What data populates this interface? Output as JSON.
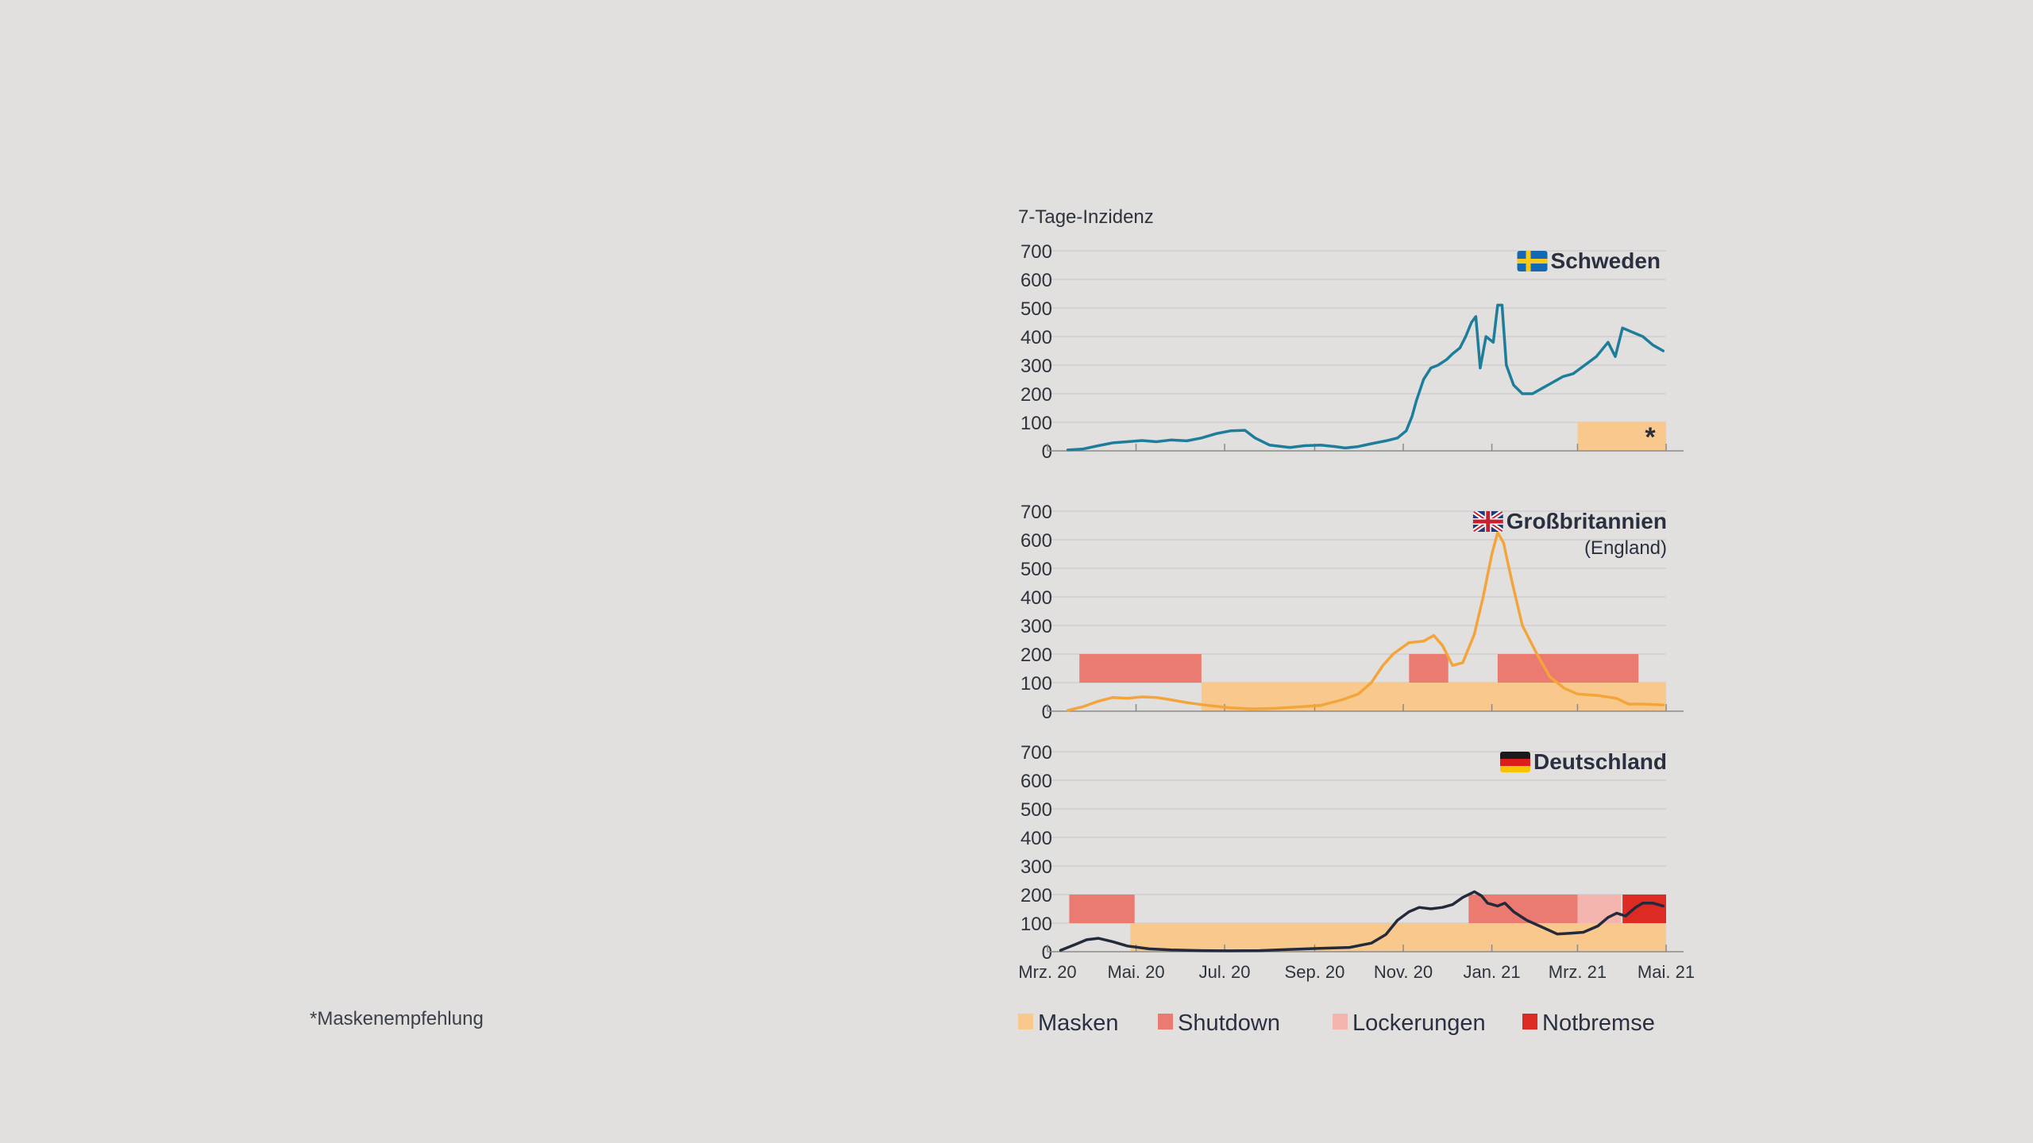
{
  "chart_data": {
    "type": "line",
    "title": "",
    "ylabel": "7-Tage-Inzidenz",
    "ylim": [
      0,
      700
    ],
    "yticks": [
      "700",
      "600",
      "500",
      "400",
      "300",
      "200",
      "100",
      "0"
    ],
    "xlim": [
      "2020-03-01",
      "2021-05-01"
    ],
    "xticks": [
      {
        "date": "2020-03-01",
        "label": "Mrz. 20"
      },
      {
        "date": "2020-05-01",
        "label": "Mai. 20"
      },
      {
        "date": "2020-07-01",
        "label": "Jul. 20"
      },
      {
        "date": "2020-09-01",
        "label": "Sep. 20"
      },
      {
        "date": "2020-11-01",
        "label": "Nov. 20"
      },
      {
        "date": "2021-01-01",
        "label": "Jan. 21"
      },
      {
        "date": "2021-03-01",
        "label": "Mrz. 21"
      },
      {
        "date": "2021-05-01",
        "label": "Mai. 21"
      }
    ],
    "grid": true,
    "legend_position": "bottom",
    "legend": [
      {
        "key": "masks",
        "label": "Masken",
        "color": "#f9c88c"
      },
      {
        "key": "shutdown",
        "label": "Shutdown",
        "color": "#eb7a70"
      },
      {
        "key": "loosening",
        "label": "Lockerungen",
        "color": "#f3b5ae"
      },
      {
        "key": "brake",
        "label": "Notbremse",
        "color": "#dd2a22"
      }
    ],
    "panels": [
      {
        "country": "Schweden",
        "subtitle": "",
        "flag": "sweden-flag-icon",
        "line_color": "#1e7d9b",
        "series": [
          [
            "2020-03-15",
            3
          ],
          [
            "2020-03-25",
            6
          ],
          [
            "2020-04-05",
            18
          ],
          [
            "2020-04-15",
            28
          ],
          [
            "2020-04-25",
            32
          ],
          [
            "2020-05-05",
            36
          ],
          [
            "2020-05-15",
            32
          ],
          [
            "2020-05-25",
            38
          ],
          [
            "2020-06-05",
            35
          ],
          [
            "2020-06-15",
            45
          ],
          [
            "2020-06-25",
            60
          ],
          [
            "2020-07-05",
            70
          ],
          [
            "2020-07-15",
            72
          ],
          [
            "2020-07-22",
            45
          ],
          [
            "2020-08-01",
            20
          ],
          [
            "2020-08-15",
            12
          ],
          [
            "2020-08-25",
            18
          ],
          [
            "2020-09-05",
            20
          ],
          [
            "2020-09-15",
            15
          ],
          [
            "2020-09-22",
            10
          ],
          [
            "2020-10-01",
            15
          ],
          [
            "2020-10-10",
            25
          ],
          [
            "2020-10-20",
            35
          ],
          [
            "2020-10-28",
            45
          ],
          [
            "2020-11-03",
            70
          ],
          [
            "2020-11-07",
            120
          ],
          [
            "2020-11-10",
            175
          ],
          [
            "2020-11-15",
            250
          ],
          [
            "2020-11-20",
            290
          ],
          [
            "2020-11-25",
            300
          ],
          [
            "2020-12-01",
            320
          ],
          [
            "2020-12-05",
            340
          ],
          [
            "2020-12-10",
            360
          ],
          [
            "2020-12-14",
            400
          ],
          [
            "2020-12-18",
            450
          ],
          [
            "2020-12-21",
            470
          ],
          [
            "2020-12-24",
            290
          ],
          [
            "2020-12-28",
            400
          ],
          [
            "2021-01-02",
            380
          ],
          [
            "2021-01-05",
            510
          ],
          [
            "2021-01-08",
            510
          ],
          [
            "2021-01-11",
            300
          ],
          [
            "2021-01-16",
            230
          ],
          [
            "2021-01-22",
            200
          ],
          [
            "2021-01-29",
            200
          ],
          [
            "2021-02-05",
            220
          ],
          [
            "2021-02-12",
            240
          ],
          [
            "2021-02-19",
            260
          ],
          [
            "2021-02-26",
            270
          ],
          [
            "2021-03-06",
            300
          ],
          [
            "2021-03-14",
            330
          ],
          [
            "2021-03-22",
            380
          ],
          [
            "2021-03-27",
            330
          ],
          [
            "2021-04-01",
            430
          ],
          [
            "2021-04-08",
            415
          ],
          [
            "2021-04-15",
            400
          ],
          [
            "2021-04-22",
            370
          ],
          [
            "2021-04-29",
            350
          ]
        ],
        "bands": [
          {
            "key": "masks",
            "level": "low",
            "start": "2021-03-01",
            "end": "2021-05-01",
            "label": "*"
          }
        ]
      },
      {
        "country": "Großbritannien",
        "subtitle": "(England)",
        "flag": "uk-flag-icon",
        "line_color": "#f3a53b",
        "series": [
          [
            "2020-03-15",
            3
          ],
          [
            "2020-03-25",
            15
          ],
          [
            "2020-04-05",
            35
          ],
          [
            "2020-04-15",
            48
          ],
          [
            "2020-04-25",
            45
          ],
          [
            "2020-05-05",
            50
          ],
          [
            "2020-05-15",
            48
          ],
          [
            "2020-05-25",
            40
          ],
          [
            "2020-06-05",
            30
          ],
          [
            "2020-06-20",
            20
          ],
          [
            "2020-07-05",
            12
          ],
          [
            "2020-07-20",
            8
          ],
          [
            "2020-08-05",
            10
          ],
          [
            "2020-08-20",
            15
          ],
          [
            "2020-09-05",
            20
          ],
          [
            "2020-09-20",
            40
          ],
          [
            "2020-10-01",
            60
          ],
          [
            "2020-10-10",
            100
          ],
          [
            "2020-10-18",
            160
          ],
          [
            "2020-10-25",
            200
          ],
          [
            "2020-11-05",
            240
          ],
          [
            "2020-11-15",
            245
          ],
          [
            "2020-11-22",
            265
          ],
          [
            "2020-11-28",
            230
          ],
          [
            "2020-12-05",
            160
          ],
          [
            "2020-12-12",
            170
          ],
          [
            "2020-12-20",
            270
          ],
          [
            "2020-12-26",
            400
          ],
          [
            "2021-01-01",
            550
          ],
          [
            "2021-01-05",
            625
          ],
          [
            "2021-01-09",
            590
          ],
          [
            "2021-01-15",
            450
          ],
          [
            "2021-01-22",
            300
          ],
          [
            "2021-02-01",
            200
          ],
          [
            "2021-02-10",
            120
          ],
          [
            "2021-02-20",
            80
          ],
          [
            "2021-03-01",
            60
          ],
          [
            "2021-03-15",
            55
          ],
          [
            "2021-03-28",
            45
          ],
          [
            "2021-04-05",
            25
          ],
          [
            "2021-04-15",
            25
          ],
          [
            "2021-04-29",
            22
          ]
        ],
        "bands": [
          {
            "key": "shutdown",
            "level": "high",
            "start": "2020-03-23",
            "end": "2020-06-15"
          },
          {
            "key": "masks",
            "level": "low",
            "start": "2020-06-15",
            "end": "2021-05-01"
          },
          {
            "key": "shutdown",
            "level": "high",
            "start": "2020-11-05",
            "end": "2020-12-02"
          },
          {
            "key": "shutdown",
            "level": "high",
            "start": "2021-01-05",
            "end": "2021-04-12"
          }
        ]
      },
      {
        "country": "Deutschland",
        "subtitle": "",
        "flag": "germany-flag-icon",
        "line_color": "#232a3b",
        "series": [
          [
            "2020-03-10",
            5
          ],
          [
            "2020-03-20",
            25
          ],
          [
            "2020-03-28",
            42
          ],
          [
            "2020-04-05",
            47
          ],
          [
            "2020-04-15",
            35
          ],
          [
            "2020-04-25",
            20
          ],
          [
            "2020-05-10",
            10
          ],
          [
            "2020-05-25",
            6
          ],
          [
            "2020-06-15",
            4
          ],
          [
            "2020-07-05",
            3
          ],
          [
            "2020-07-25",
            4
          ],
          [
            "2020-08-15",
            8
          ],
          [
            "2020-09-05",
            12
          ],
          [
            "2020-09-25",
            15
          ],
          [
            "2020-10-10",
            30
          ],
          [
            "2020-10-20",
            60
          ],
          [
            "2020-10-28",
            110
          ],
          [
            "2020-11-05",
            140
          ],
          [
            "2020-11-12",
            155
          ],
          [
            "2020-11-20",
            150
          ],
          [
            "2020-11-28",
            155
          ],
          [
            "2020-12-05",
            165
          ],
          [
            "2020-12-12",
            190
          ],
          [
            "2020-12-20",
            210
          ],
          [
            "2020-12-25",
            195
          ],
          [
            "2020-12-29",
            170
          ],
          [
            "2021-01-05",
            160
          ],
          [
            "2021-01-10",
            170
          ],
          [
            "2021-01-16",
            140
          ],
          [
            "2021-01-25",
            110
          ],
          [
            "2021-02-05",
            85
          ],
          [
            "2021-02-15",
            62
          ],
          [
            "2021-02-25",
            65
          ],
          [
            "2021-03-05",
            68
          ],
          [
            "2021-03-15",
            90
          ],
          [
            "2021-03-22",
            120
          ],
          [
            "2021-03-28",
            135
          ],
          [
            "2021-04-03",
            125
          ],
          [
            "2021-04-10",
            155
          ],
          [
            "2021-04-15",
            170
          ],
          [
            "2021-04-22",
            170
          ],
          [
            "2021-04-29",
            160
          ]
        ],
        "bands": [
          {
            "key": "shutdown",
            "level": "high",
            "start": "2020-03-16",
            "end": "2020-04-30"
          },
          {
            "key": "masks",
            "level": "low",
            "start": "2020-04-27",
            "end": "2021-05-01"
          },
          {
            "key": "shutdown",
            "level": "high",
            "start": "2020-12-16",
            "end": "2021-03-01"
          },
          {
            "key": "loosening",
            "level": "high",
            "start": "2021-03-01",
            "end": "2021-03-31"
          },
          {
            "key": "brake",
            "level": "high",
            "start": "2021-04-01",
            "end": "2021-05-01"
          }
        ]
      }
    ]
  },
  "footnote": "*Maskenempfehlung"
}
